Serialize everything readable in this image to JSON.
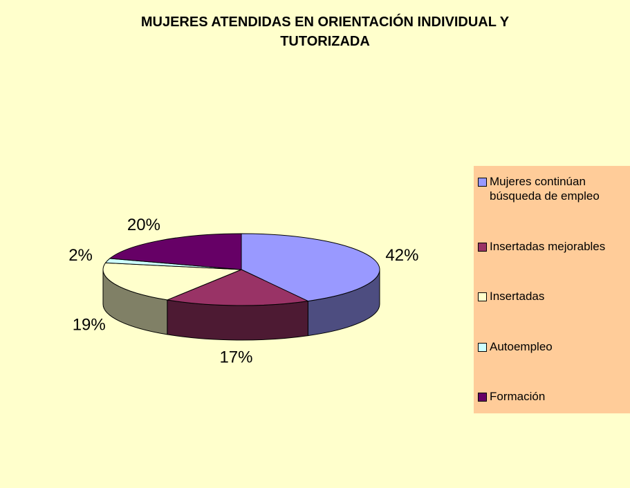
{
  "chart_data": {
    "type": "pie3d",
    "title": "MUJERES ATENDIDAS EN ORIENTACIÓN INDIVIDUAL Y TUTORIZADA",
    "categories": [
      "Mujeres continúan búsqueda de empleo",
      "Insertadas mejorables",
      "Insertadas",
      "Autoempleo",
      "Formación"
    ],
    "values": [
      42,
      17,
      19,
      2,
      20
    ],
    "value_labels": [
      "42%",
      "17%",
      "19%",
      "2%",
      "20%"
    ],
    "colors": [
      "#9999ff",
      "#993366",
      "#ffffcc",
      "#ccffff",
      "#660066"
    ],
    "legend": "right"
  }
}
